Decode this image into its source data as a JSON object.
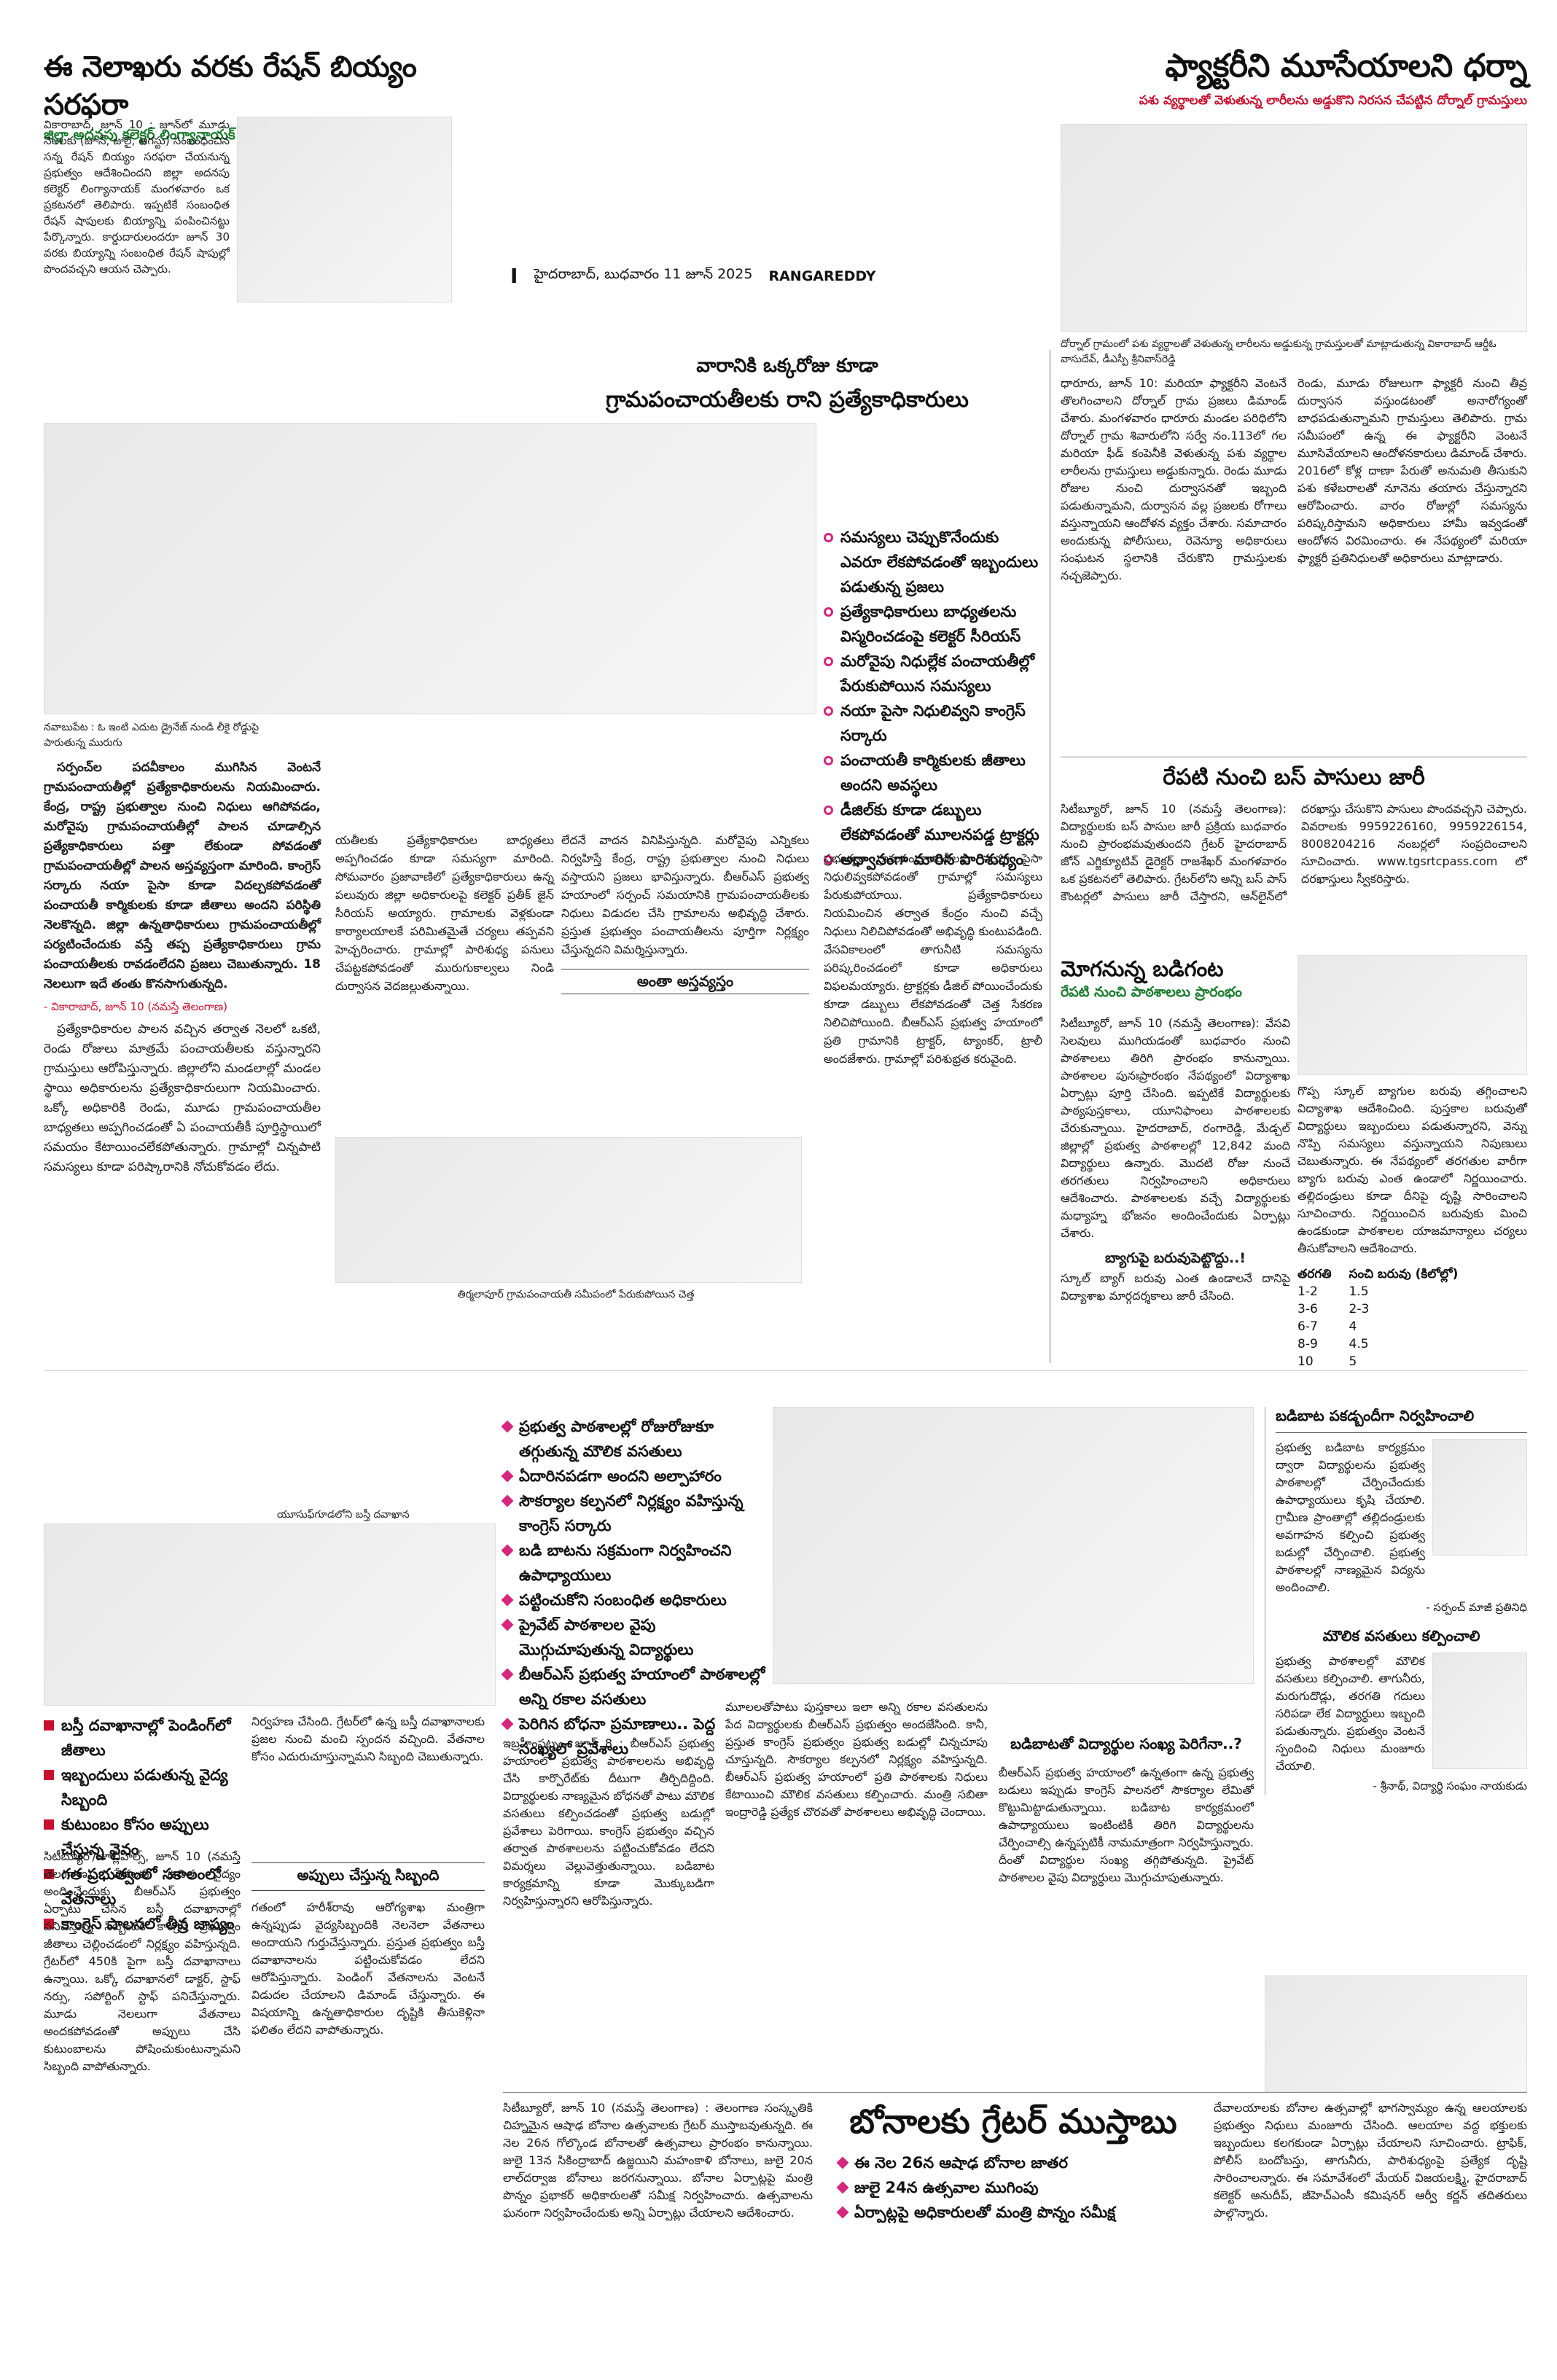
{
  "masthead": {
    "city_date": "హైదరాబాద్, బుధవారం 11 జూన్ 2025",
    "edition": "RANGAREDDY"
  },
  "story_ration": {
    "headline": "ఈ నెలాఖరు వరకు రేషన్ బియ్యం సరఫరా",
    "subhead": "జిల్లా అదనపు కలెక్టర్ లింగ్యానాయక్",
    "body": "వికారాబాద్, జూన్ 10 : జూన్‌లో మూడు నెలలకు (జూన్, జులై, ఆగస్టు) సంబంధించిన సన్న రేషన్ బియ్యం సరఫరా చేయనున్న ప్రభుత్వం ఆదేశించిందని జిల్లా అదనపు కలెక్టర్ లింగ్యానాయక్ మంగళవారం ఒక ప్రకటనలో తెలిపారు. ఇప్పటికే సంబంధిత రేషన్ షాపులకు బియ్యాన్ని పంపించినట్టు పేర్కొన్నారు. కార్డుదారులందరూ జూన్ 30 వరకు బియ్యాన్ని సంబంధిత రేషన్ షాపుల్లో పొందవచ్చని ఆయన చెప్పారు."
  },
  "story_factory": {
    "headline": "ఫ్యాక్టరీని మూసేయాలని ధర్నా",
    "subhead": "పశు వ్యర్థాలతో వెళుతున్న లారీలను అడ్డుకొని నిరసన చేపట్టిన దోర్నాల్ గ్రామస్తులు",
    "photo_caption": "దోర్నాల్ గ్రామంలో పశు వ్యర్థాలతో వెళుతున్న లారీలను అడ్డుకున్న గ్రామస్తులతో మాట్లాడుతున్న వికారాబాద్ ఆర్డీఓ వాసుదేవ్, డీఎస్పీ శ్రీనివాస్‌రెడ్డి",
    "body_left": "ధారూరు, జూన్ 10: మరియా ఫ్యాక్టరీని వెంటనే తొలగించాలని దోర్నాల్ గ్రామ ప్రజలు డిమాండ్ చేశారు. మంగళవారం ధారూరు మండల పరిధిలోని దోర్నాల్ గ్రామ శివారులోని సర్వే నం.113లో గల మరియా ఫీడ్ కంపెనీకి వెళుతున్న పశు వ్యర్థాల లారీలను గ్రామస్తులు అడ్డుకున్నారు. రెండు మూడు రోజుల నుంచి దుర్వాసనతో ఇబ్బంది పడుతున్నామని, దుర్వాసన వల్ల ప్రజలకు రోగాలు వస్తున్నాయని ఆందోళన వ్యక్తం చేశారు. సమాచారం అందుకున్న పోలీసులు, రెవెన్యూ అధికారులు సంఘటన స్థలానికి చేరుకొని గ్రామస్తులకు నచ్చజెప్పారు.",
    "body_right": "రెండు, మూడు రోజులుగా ఫ్యాక్టరీ నుంచి తీవ్ర దుర్వాసన వస్తుండటంతో అనారోగ్యంతో బాధపడుతున్నామని గ్రామస్తులు తెలిపారు. గ్రామ సమీపంలో ఉన్న ఈ ఫ్యాక్టరీని వెంటనే మూసివేయాలని ఆందోళనకారులు డిమాండ్ చేశారు. 2016లో కోళ్ల దాణా పేరుతో అనుమతి తీసుకుని పశు కళేబరాలతో నూనెను తయారు చేస్తున్నారని ఆరోపించారు. వారం రోజుల్లో సమస్యను పరిష్కరిస్తామని అధికారులు హామీ ఇవ్వడంతో ఆందోళన విరమించారు. ఈ నేపథ్యంలో మరియా ఫ్యాక్టరీ ప్రతినిధులతో అధికారులు మాట్లాడారు."
  },
  "story_special_officers": {
    "headline_line1": "వారానికి ఒక్కరోజు కూడా",
    "headline_line2": "గ్రామపంచాయతీలకు రాని ప్రత్యేకాధికారులు",
    "bullets": [
      "సమస్యలు చెప్పుకొనేందుకు ఎవరూ లేకపోవడంతో ఇబ్బందులు పడుతున్న ప్రజలు",
      "ప్రత్యేకాధికారులు బాధ్యతలను విస్మరించడంపై కలెక్టర్ సీరియస్",
      "మరోవైపు నిధుల్లేక పంచాయతీల్లో పేరుకుపోయిన సమస్యలు",
      "నయా పైసా నిధులివ్వని కాంగ్రెస్ సర్కారు",
      "పంచాయతీ కార్మికులకు జీతాలు అందని అవస్థలు",
      "డీజిల్‌కు కూడా డబ్బులు లేకపోవడంతో మూలనపడ్డ ట్రాక్టర్లు",
      "అధ్వానంగా మారిన పారిశుధ్యం"
    ],
    "photo_caption_top": "నవాబుపేట : ఓ ఇంటి ఎదుట డ్రైనేజ్ నుండి లీకై రోడ్డుపై పారుతున్న మురుగు",
    "body_col1": "సర్పంచ్‌ల పదవీకాలం ముగిసిన వెంటనే గ్రామపంచాయతీల్లో ప్రత్యేకాధికారులను నియమించారు. కేంద్ర, రాష్ట్ర ప్రభుత్వాల నుంచి నిధులు ఆగిపోవడం, మరోవైపు గ్రామపంచాయతీల్లో పాలన చూడాల్సిన ప్రత్యేకాధికారులు పత్తా లేకుండా పోవడంతో గ్రామపంచాయతీల్లో పాలన అస్తవ్యస్తంగా మారింది. కాంగ్రెస్ సర్కారు నయా పైసా కూడా విదల్చకపోవడంతో పంచాయతీ కార్మికులకు కూడా జీతాలు అందని పరిస్థితి నెలకొన్నది. జిల్లా ఉన్నతాధికారులు గ్రామపంచాయతీల్లో పర్యటించేందుకు వస్తే తప్ప ప్రత్యేకాధికారులు గ్రామ పంచాయతీలకు రావడంలేదని ప్రజలు చెబుతున్నారు. 18 నెలలుగా ఇదే తంతు కొనసాగుతున్నది.",
    "byline": "- వికారాబాద్, జూన్ 10 (నమస్తే తెలంగాణ)",
    "body_col1b": "ప్రత్యేకాధికారుల పాలన వచ్చిన తర్వాత నెలలో ఒకటి, రెండు రోజులు మాత్రమే పంచాయతీలకు వస్తున్నారని గ్రామస్తులు ఆరోపిస్తున్నారు. జిల్లాలోని మండలాల్లో మండల స్థాయి అధికారులను ప్రత్యేకాధికారులుగా నియమించారు. ఒక్కో అధికారికి రెండు, మూడు గ్రామపంచాయతీల బాధ్యతలు అప్పగించడంతో ఏ పంచాయతీకీ పూర్తిస్థాయిలో సమయం కేటాయించలేకపోతున్నారు. గ్రామాల్లో చిన్నపాటి సమస్యలు కూడా పరిష్కారానికి నోచుకోవడం లేదు.",
    "subhead_rule": "అంతా అస్తవ్యస్తం",
    "body_col2": "యతీలకు ప్రత్యేకాధికారుల బాధ్యతలు అప్పగించడం కూడా సమస్యగా మారింది. సోమవారం ప్రజావాణిలో ప్రత్యేకాధికారులు ఉన్న పలువురు జిల్లా అధికారులపై కలెక్టర్ ప్రతీక్ జైన్ సీరియస్ అయ్యారు. గ్రామాలకు వెళ్లకుండా కార్యాలయాలకే పరిమితమైతే చర్యలు తప్పవని హెచ్చరించారు. గ్రామాల్లో పారిశుధ్య పనులు చేపట్టకపోవడంతో మురుగుకాల్వలు నిండి దుర్వాసన వెదజల్లుతున్నాయి.",
    "body_col3": "లేదనే వాదన వినిపిస్తున్నది. మరోవైపు ఎన్నికలు నిర్వహిస్తే కేంద్ర, రాష్ట్ర ప్రభుత్వాల నుంచి నిధులు వస్తాయని ప్రజలు భావిస్తున్నారు. బీఆర్ఎస్ ప్రభుత్వ హయాంలో సర్పంచ్ సమయానికి గ్రామపంచాయతీలకు నిధులు విడుదల చేసి గ్రామాలను అభివృద్ధి చేశారు. ప్రస్తుత ప్రభుత్వం పంచాయతీలను పూర్తిగా నిర్లక్ష్యం చేస్తున్నదని విమర్శిస్తున్నారు.",
    "body_col4": "ప్రభుత్వం గ్రామపంచాయతీలకు నయా పైసా నిధులివ్వకపోవడంతో గ్రామాల్లో సమస్యలు పేరుకుపోయాయి. ప్రత్యేకాధికారులు నియమించిన తర్వాత కేంద్రం నుంచి వచ్చే నిధులు నిలిచిపోవడంతో అభివృద్ధి కుంటుపడింది. వేసవికాలంలో తాగునీటి సమస్యను పరిష్కరించడంలో కూడా అధికారులు విఫలమయ్యారు. ట్రాక్టర్లకు డీజిల్ పోయించేందుకు కూడా డబ్బులు లేకపోవడంతో చెత్త సేకరణ నిలిచిపోయింది. బీఆర్ఎస్ ప్రభుత్వ హయాంలో ప్రతి గ్రామానికి ట్రాక్టర్, ట్యాంకర్, ట్రాలీ అందజేశారు. గ్రామాల్లో పరిశుభ్రత కరువైంది.",
    "photo_caption_bottom": "తిర్మలాపూర్ గ్రామపంచాయతీ సమీపంలో పేరుకుపోయిన చెత్త"
  },
  "story_bus_pass": {
    "headline": "రేపటి నుంచి బస్ పాసులు జారీ",
    "body": "సిటీబ్యూరో, జూన్ 10 (నమస్తే తెలంగాణ): విద్యార్థులకు బస్ పాసుల జారీ ప్రక్రియ బుధవారం నుంచి ప్రారంభమవుతుందని గ్రేటర్ హైదరాబాద్ జోన్ ఎగ్జిక్యూటివ్ డైరెక్టర్ రాజశేఖర్ మంగళవారం ఒక ప్రకటనలో తెలిపారు. గ్రేటర్‌లోని అన్ని బస్ పాస్ కౌంటర్లలో పాసులు జారీ చేస్తారని, ఆన్‌లైన్‌లో దరఖాస్తు చేసుకొని పాసులు పొందవచ్చని చెప్పారు. వివరాలకు 9959226160, 9959226154, 8008204216 నంబర్లలో సంప్రదించాలని సూచించారు. www.tgsrtcpass.com లో దరఖాస్తులు స్వీకరిస్తారు."
  },
  "story_school_bell": {
    "headline": "మోగనున్న బడిగంట",
    "subhead": "రేపటి నుంచి పాఠశాలలు ప్రారంభం",
    "body_left": "సిటీబ్యూరో, జూన్ 10 (నమస్తే తెలంగాణ): వేసవి సెలవులు ముగియడంతో బుధవారం నుంచి పాఠశాలలు తిరిగి ప్రారంభం కానున్నాయి. పాఠశాలల పునఃప్రారంభం నేపథ్యంలో విద్యాశాఖ ఏర్పాట్లు పూర్తి చేసింది. ఇప్పటికే విద్యార్థులకు పాఠ్యపుస్తకాలు, యూనిఫాంలు పాఠశాలలకు చేరుకున్నాయి. హైదరాబాద్, రంగారెడ్డి, మేడ్చల్ జిల్లాల్లో ప్రభుత్వ పాఠశాలల్లో 12,842 మంది విద్యార్థులు ఉన్నారు. మొదటి రోజు నుంచే తరగతులు నిర్వహించాలని అధికారులు ఆదేశించారు. పాఠశాలలకు వచ్చే విద్యార్థులకు మధ్యాహ్న భోజనం అందించేందుకు ఏర్పాట్లు చేశారు.",
    "subhead2": "బ్యాగుపై బరువుపెట్టొద్దు..!",
    "body_left2": "స్కూల్ బ్యాగ్ బరువు ఎంత ఉండాలనే దానిపై విద్యాశాఖ మార్గదర్శకాలు జారీ చేసింది.",
    "body_right": "గొప్ప స్కూల్ బ్యాగుల బరువు తగ్గించాలని విద్యాశాఖ ఆదేశించింది. పుస్తకాల బరువుతో విద్యార్థులు ఇబ్బందులు పడుతున్నారని, వెన్ను నొప్పి సమస్యలు వస్తున్నాయని నిపుణులు చెబుతున్నారు. ఈ నేపథ్యంలో తరగతుల వారీగా బ్యాగు బరువు ఎంత ఉండాలో నిర్ణయించారు. తల్లిదండ్రులు కూడా దీనిపై దృష్టి సారించాలని సూచించారు. నిర్ణయించిన బరువుకు మించి ఉండకుండా పాఠశాలల యాజమాన్యాలు చర్యలు తీసుకోవాలని ఆదేశించారు.",
    "table_headers": [
      "తరగతి",
      "సంచి బరువు (కిలోల్లో)"
    ],
    "table_rows": [
      [
        "1-2",
        "1.5"
      ],
      [
        "3-6",
        "2-3"
      ],
      [
        "6-7",
        "4"
      ],
      [
        "8-9",
        "4.5"
      ],
      [
        "10",
        "5"
      ]
    ]
  },
  "story_basti": {
    "photo_caption": "యూసుఫ్‌గూడలోని బస్తీ దవాఖాన",
    "bullets": [
      "బస్తీ దవాఖానాల్లో పెండింగ్‌లో జీతాలు",
      "ఇబ్బందులు పడుతున్న వైద్య సిబ్బంది",
      "కుటుంబం కోసం అప్పులు చేస్తున్న వైనం",
      "గత ప్రభుత్వంలో సకాలంలో వేతనాలు",
      "కాంగ్రెస్ పాలనలో తీవ్ర జాప్యం"
    ],
    "body_col1": "సిటీబ్యూరో/జూబ్లీహిల్స్, జూన్ 10 (నమస్తే తెలంగాణ): పేదలకు ఉచిత వైద్యం అందించేందుకు బీఆర్ఎస్ ప్రభుత్వం ఏర్పాటు చేసిన బస్తీ దవాఖానాల్లో పనిచేస్తున్న సిబ్బందికి కాంగ్రెస్ ప్రభుత్వం జీతాలు చెల్లించడంలో నిర్లక్ష్యం వహిస్తున్నది. గ్రేటర్‌లో 450కి పైగా బస్తీ దవాఖానాలు ఉన్నాయి. ఒక్కో దవాఖానలో డాక్టర్, స్టాఫ్ నర్సు, సపోర్టింగ్ స్టాఫ్ పనిచేస్తున్నారు. మూడు నెలలుగా వేతనాలు అందకపోవడంతో అప్పులు చేసి కుటుంబాలను పోషించుకుంటున్నామని సిబ్బంది వాపోతున్నారు.",
    "body_col2": "నిర్వహణ చేసింది. గ్రేటర్‌లో ఉన్న బస్తీ దవాఖానాలకు ప్రజల నుంచి మంచి స్పందన వచ్చింది. వేతనాల కోసం ఎదురుచూస్తున్నామని సిబ్బంది చెబుతున్నారు.",
    "subhead_rule": "అప్పులు చేస్తున్న సిబ్బంది",
    "body_col3": "గతంలో హరీశ్‌రావు ఆరోగ్యశాఖ మంత్రిగా ఉన్నప్పుడు వైద్యసిబ్బందికి నెలనెలా వేతనాలు అందాయని గుర్తుచేస్తున్నారు. ప్రస్తుత ప్రభుత్వం బస్తీ దవాఖానాలను పట్టించుకోవడం లేదని ఆరోపిస్తున్నారు. పెండింగ్ వేతనాలను వెంటనే విడుదల చేయాలని డిమాండ్ చేస్తున్నారు. ఈ విషయాన్ని ఉన్నతాధికారుల దృష్టికి తీసుకెళ్లినా ఫలితం లేదని వాపోతున్నారు."
  },
  "story_schools": {
    "bullets": [
      "ప్రభుత్వ పాఠశాలల్లో రోజురోజుకూ తగ్గుతున్న మౌలిక వసతులు",
      "ఏదారినపడగా అందని అల్పాహారం",
      "సౌకర్యాల కల్పనలో నిర్లక్ష్యం వహిస్తున్న కాంగ్రెస్ సర్కారు",
      "బడి బాటను సక్రమంగా నిర్వహించని ఉపాధ్యాయులు",
      "పట్టించుకోని సంబంధిత అధికారులు",
      "ప్రైవేట్ పాఠశాలల వైపు మొగ్గుచూపుతున్న విద్యార్థులు",
      "బీఆర్ఎస్ ప్రభుత్వ హయాంలో పాఠశాలల్లో అన్ని రకాల వసతులు",
      "పెరిగిన బోధనా ప్రమాణాలు.. పెద్ద సంఖ్యలో ప్రవేశాలు"
    ],
    "body_col1": "ఇబ్రహీంపట్నం, జూన్ 8 : బీఆర్ఎస్ ప్రభుత్వ హయాంలో ప్రభుత్వ పాఠశాలలను అభివృద్ధి చేసి కార్పొరేట్‌కు దీటుగా తీర్చిదిద్దింది. విద్యార్థులకు నాణ్యమైన బోధనతో పాటు మౌలిక వసతులు కల్పించడంతో ప్రభుత్వ బడుల్లో ప్రవేశాలు పెరిగాయి. కాంగ్రెస్ ప్రభుత్వం వచ్చిన తర్వాత పాఠశాలలను పట్టించుకోవడం లేదని విమర్శలు వెల్లువెత్తుతున్నాయి. బడిబాట కార్యక్రమాన్ని కూడా మొక్కుబడిగా నిర్వహిస్తున్నారని ఆరోపిస్తున్నారు.",
    "body_col2": "మూలలతోపాటు పుస్తకాలు ఇలా అన్ని రకాల వసతులను పేద విద్యార్థులకు బీఆర్ఎస్ ప్రభుత్వం అందజేసింది. కానీ, ప్రస్తుత కాంగ్రెస్ ప్రభుత్వం ప్రభుత్వ బడుల్లో చిన్నచూపు చూస్తున్నది. సౌకర్యాల కల్పనలో నిర్లక్ష్యం వహిస్తున్నది. బీఆర్ఎస్ ప్రభుత్వ హయాంలో ప్రతి పాఠశాలకు నిధులు కేటాయించి మౌలిక వసతులు కల్పించారు. మంత్రి సబితా ఇంద్రారెడ్డి ప్రత్యేక చొరవతో పాఠశాలలు అభివృద్ధి చెందాయి.",
    "subhead_box": "బడిబాటతో విద్యార్థుల సంఖ్య పెరిగేనా..?",
    "body_col3": "బీఆర్ఎస్ ప్రభుత్వ హయాంలో ఉన్నతంగా ఉన్న ప్రభుత్వ బడులు ఇప్పుడు కాంగ్రెస్ పాలనలో సౌకర్యాల లేమితో కొట్టుమిట్టాడుతున్నాయి. బడిబాట కార్యక్రమంలో ఉపాధ్యాయులు ఇంటింటికీ తిరిగి విద్యార్థులను చేర్పించాల్సి ఉన్నప్పటికీ నామమాత్రంగా నిర్వహిస్తున్నారు. దీంతో విద్యార్థుల సంఖ్య తగ్గిపోతున్నది. ప్రైవేట్ పాఠశాలల వైపు విద్యార్థులు మొగ్గుచూపుతున్నారు.",
    "side_box_title": "బడిబాట పకడ్బందీగా నిర్వహించాలి",
    "side_body": "ప్రభుత్వ బడిబాట కార్యక్రమం ద్వారా విద్యార్థులను ప్రభుత్వ పాఠశాలల్లో చేర్పించేందుకు ఉపాధ్యాయులు కృషి చేయాలి. గ్రామీణ ప్రాంతాల్లో తల్లిదండ్రులకు అవగాహన కల్పించి ప్రభుత్వ బడుల్లో చేర్పించాలి. ప్రభుత్వ పాఠశాలల్లో నాణ్యమైన విద్యను అందించాలి.",
    "side_byline": "- సర్పంచ్ మాజీ ప్రతినిధి",
    "side_subhead": "మౌలిక వసతులు కల్పించాలి",
    "side_body2": "ప్రభుత్వ పాఠశాలల్లో మౌలిక వసతులు కల్పించాలి. తాగునీరు, మరుగుదొడ్లు, తరగతి గదులు సరిపడా లేక విద్యార్థులు ఇబ్బంది పడుతున్నారు. ప్రభుత్వం వెంటనే స్పందించి నిధులు మంజూరు చేయాలి.",
    "side_byline2": "- శ్రీనాథ్, విద్యార్థి సంఘం నాయకుడు"
  },
  "story_bonalu": {
    "headline": "బోనాలకు గ్రేటర్ ముస్తాబు",
    "bullets": [
      "ఈ నెల 26న ఆషాఢ బోనాల జాతర",
      "జులై 24న ఉత్సవాల ముగింపు",
      "ఏర్పాట్లపై అధికారులతో మంత్రి పొన్నం సమీక్ష"
    ],
    "body_left": "సిటీబ్యూరో, జూన్ 10 (నమస్తే తెలంగాణ) : తెలంగాణ సంస్కృతికి చిహ్నమైన ఆషాఢ బోనాల ఉత్సవాలకు గ్రేటర్ ముస్తాబవుతున్నది. ఈ నెల 26న గోల్కొండ బోనాలతో ఉత్సవాలు ప్రారంభం కానున్నాయి. జులై 13న సికింద్రాబాద్ ఉజ్జయిని మహంకాళి బోనాలు, జులై 20న లాల్‌దర్వాజ బోనాలు జరగనున్నాయి. బోనాల ఏర్పాట్లపై మంత్రి పొన్నం ప్రభాకర్ అధికారులతో సమీక్ష నిర్వహించారు. ఉత్సవాలను ఘనంగా నిర్వహించేందుకు అన్ని ఏర్పాట్లు చేయాలని ఆదేశించారు.",
    "body_right": "దేవాలయాలకు బోనాల ఉత్సవాల్లో భాగస్వామ్యం ఉన్న ఆలయాలకు ప్రభుత్వం నిధులు మంజూరు చేసింది. ఆలయాల వద్ద భక్తులకు ఇబ్బందులు కలగకుండా ఏర్పాట్లు చేయాలని సూచించారు. ట్రాఫిక్, పోలీస్ బందోబస్తు, తాగునీరు, పారిశుధ్యంపై ప్రత్యేక దృష్టి సారించాలన్నారు. ఈ సమావేశంలో మేయర్ విజయలక్ష్మి, హైదరాబాద్ కలెక్టర్ అనుదీప్, జీహెచ్ఎంసీ కమిషనర్ ఆర్వీ కర్ణన్ తదితరులు పాల్గొన్నారు."
  }
}
